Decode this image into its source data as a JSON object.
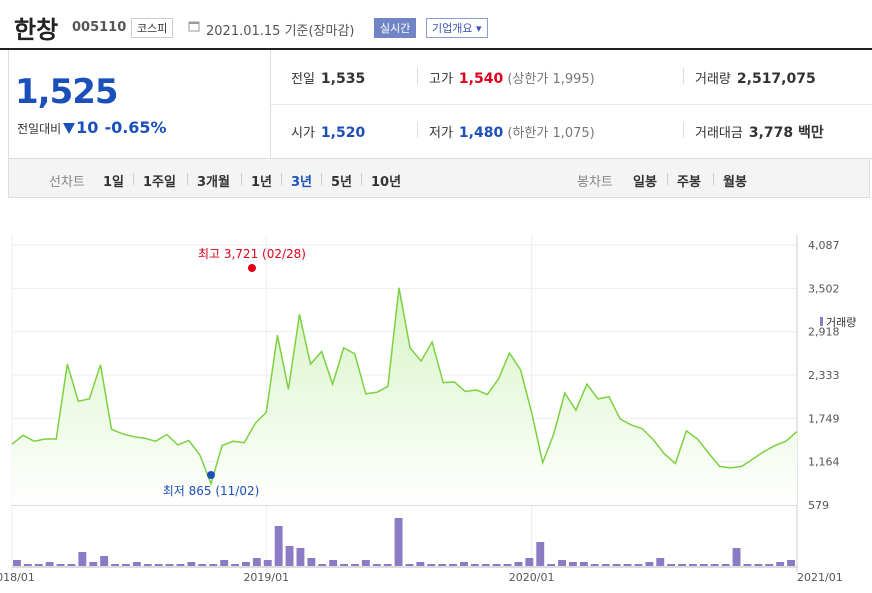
{
  "header": {
    "name": "한창",
    "code": "005110",
    "market": "코스피",
    "date": "2021.01.15 기준(장마감)",
    "realtime": "실시간",
    "corp_overview": "기업개요 ▾"
  },
  "quote": {
    "price": "1,525",
    "change_label": "전일대비",
    "change_value": "10",
    "change_pct": "-0.65%",
    "prev_label": "전일",
    "prev": "1,535",
    "high_label": "고가",
    "high": "1,540",
    "upper_limit": "(상한가 1,995)",
    "volume_label": "거래량",
    "volume": "2,517,075",
    "open_label": "시가",
    "open": "1,520",
    "low_label": "저가",
    "low": "1,480",
    "lower_limit": "(하한가 1,075)",
    "value_label": "거래대금",
    "value": "3,778 백만"
  },
  "tabs": {
    "line_label": "선차트",
    "periods": [
      "1일",
      "1주일",
      "3개월",
      "1년",
      "3년",
      "5년",
      "10년"
    ],
    "selected": "3년",
    "candle_label": "봉차트",
    "candle": [
      "일봉",
      "주봉",
      "월봉"
    ]
  },
  "colors": {
    "line": "#7cd140",
    "area_top": "#d7f4c4",
    "up": "#e0001b",
    "down": "#1b50bb",
    "volume": "#8b7bc4"
  },
  "chart_data": {
    "type": "area",
    "x_ticks": [
      "2018/01",
      "2019/01",
      "2020/01",
      "2021/01"
    ],
    "y_ticks": [
      "4,087",
      "3,502",
      "2,918",
      "2,333",
      "1,749",
      "1,164",
      "579"
    ],
    "ylim": [
      579,
      4087
    ],
    "grid": true,
    "max_label": "최고 3,721 (02/28)",
    "min_label": "최저 865 (11/02)",
    "volume_legend": "거래량",
    "series": [
      {
        "x": [
          "2018/01",
          "2018/01",
          "2018/02",
          "2018/02",
          "2018/03",
          "2018/04",
          "2018/04",
          "2018/05",
          "2018/05",
          "2018/06",
          "2018/06",
          "2018/07",
          "2018/07",
          "2018/08",
          "2018/08",
          "2018/09",
          "2018/09",
          "2018/10",
          "2018/10",
          "2018/11",
          "2018/11",
          "2018/12",
          "2018/12",
          "2019/01",
          "2019/01",
          "2019/02",
          "2019/02",
          "2019/03",
          "2019/03",
          "2019/04",
          "2019/04",
          "2019/05",
          "2019/05",
          "2019/06",
          "2019/06",
          "2019/07",
          "2019/07",
          "2019/08",
          "2019/08",
          "2019/09",
          "2019/09",
          "2019/10",
          "2019/10",
          "2019/11",
          "2019/11",
          "2019/12",
          "2019/12",
          "2020/01",
          "2020/01",
          "2020/02",
          "2020/02",
          "2020/03",
          "2020/03",
          "2020/04",
          "2020/04",
          "2020/05",
          "2020/05",
          "2020/06",
          "2020/06",
          "2020/07",
          "2020/07",
          "2020/08",
          "2020/08",
          "2020/09",
          "2020/09",
          "2020/10",
          "2020/10",
          "2020/11",
          "2020/11",
          "2020/12",
          "2020/12",
          "2021/01"
        ],
        "values": [
          1400,
          1520,
          1440,
          1470,
          1470,
          2480,
          1980,
          2010,
          2470,
          1600,
          1540,
          1500,
          1480,
          1440,
          1530,
          1390,
          1450,
          1250,
          865,
          1380,
          1440,
          1420,
          1680,
          1830,
          2870,
          2140,
          3150,
          2480,
          2650,
          2210,
          2700,
          2620,
          2080,
          2100,
          2180,
          3510,
          2700,
          2520,
          2780,
          2230,
          2240,
          2110,
          2130,
          2070,
          2280,
          2630,
          2400,
          1830,
          1150,
          1540,
          2090,
          1860,
          2210,
          2010,
          2040,
          1740,
          1660,
          1610,
          1460,
          1270,
          1140,
          1580,
          1470,
          1280,
          1100,
          1080,
          1100,
          1200,
          1300,
          1380,
          1440,
          1570
        ]
      }
    ],
    "volume_values": [
      3,
      1,
      1,
      2,
      1,
      1,
      7,
      2,
      5,
      1,
      1,
      2,
      1,
      1,
      1,
      1,
      2,
      1,
      1,
      3,
      1,
      2,
      4,
      3,
      20,
      10,
      9,
      4,
      1,
      3,
      1,
      1,
      3,
      1,
      1,
      24,
      1,
      2,
      1,
      1,
      1,
      2,
      1,
      1,
      1,
      1,
      2,
      4,
      12,
      1,
      3,
      2,
      2,
      1,
      1,
      1,
      1,
      1,
      2,
      4,
      1,
      1,
      1,
      1,
      1,
      1,
      9,
      1,
      1,
      1,
      2,
      3
    ]
  }
}
